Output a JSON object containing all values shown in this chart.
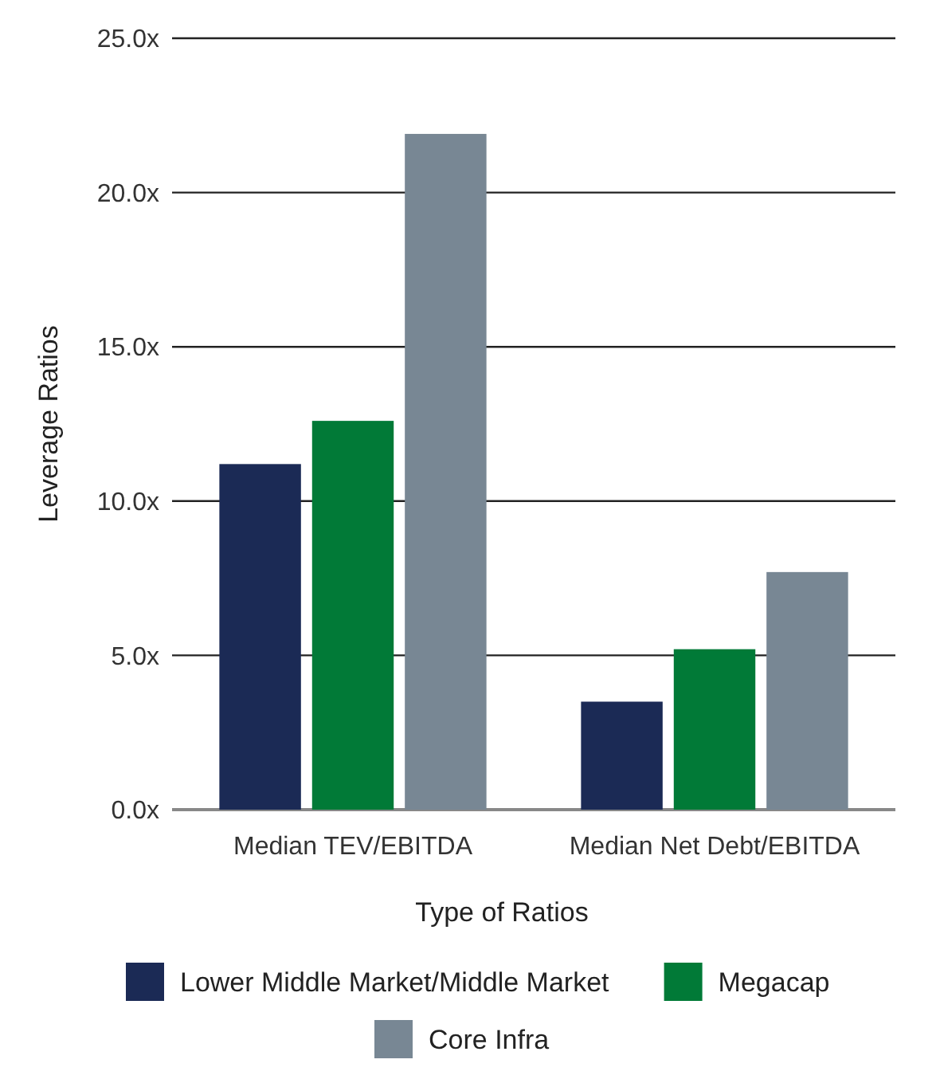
{
  "chart_data": {
    "type": "bar",
    "xlabel": "Type of Ratios",
    "ylabel": "Leverage Ratios",
    "categories": [
      "Median TEV/EBITDA",
      "Median Net Debt/EBITDA"
    ],
    "series": [
      {
        "name": "Lower Middle Market/Middle Market",
        "color": "#1b2a55",
        "values": [
          11.2,
          3.5
        ]
      },
      {
        "name": "Megacap",
        "color": "#017a37",
        "values": [
          12.6,
          5.2
        ]
      },
      {
        "name": "Core Infra",
        "color": "#788794",
        "values": [
          21.9,
          7.7
        ]
      }
    ],
    "ylim": [
      0,
      25
    ],
    "yticks": [
      {
        "value": 0,
        "label": "0.0x"
      },
      {
        "value": 5,
        "label": "5.0x"
      },
      {
        "value": 10,
        "label": "10.0x"
      },
      {
        "value": 15,
        "label": "15.0x"
      },
      {
        "value": 20,
        "label": "20.0x"
      },
      {
        "value": 25,
        "label": "25.0x"
      }
    ],
    "grid": "y",
    "legend": "bottom"
  }
}
